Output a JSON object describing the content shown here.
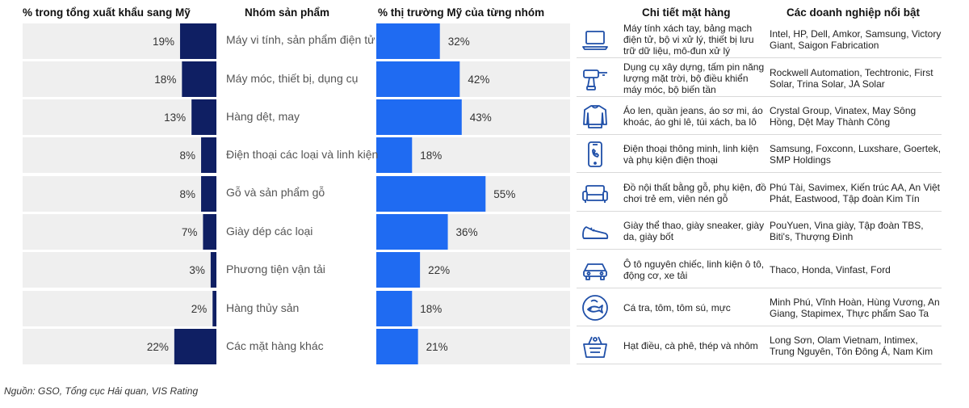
{
  "headers": {
    "left": "% trong tổng xuất khẩu sang Mỹ",
    "product": "Nhóm sản phẩm",
    "right": "% thị trường Mỹ của từng nhóm",
    "detail": "Chi tiết mặt hàng",
    "companies": "Các doanh nghiệp nổi bật"
  },
  "chart_data": [
    {
      "type": "bar",
      "orientation": "horizontal-reversed",
      "title": "% trong tổng xuất khẩu sang Mỹ",
      "categories": [
        "Máy vi tính, sản phẩm điện tử",
        "Máy móc, thiết bị, dụng cụ",
        "Hàng dệt, may",
        "Điện thoại các loại và linh kiện",
        "Gỗ và sản phẩm gỗ",
        "Giày dép các loại",
        "Phương tiện vận tải",
        "Hàng thủy sản",
        "Các mặt hàng khác"
      ],
      "values": [
        19,
        18,
        13,
        8,
        8,
        7,
        3,
        2,
        22
      ],
      "labels": [
        "19%",
        "18%",
        "13%",
        "8%",
        "8%",
        "7%",
        "3%",
        "2%",
        "22%"
      ],
      "xlim": [
        0,
        100
      ],
      "colors": {
        "bar": "#0f1f63",
        "track": "#efefef"
      }
    },
    {
      "type": "bar",
      "orientation": "horizontal",
      "title": "% thị trường Mỹ của từng nhóm",
      "categories": [
        "Máy vi tính, sản phẩm điện tử",
        "Máy móc, thiết bị, dụng cụ",
        "Hàng dệt, may",
        "Điện thoại các loại và linh kiện",
        "Gỗ và sản phẩm gỗ",
        "Giày dép các loại",
        "Phương tiện vận tải",
        "Hàng thủy sản",
        "Các mặt hàng khác"
      ],
      "values": [
        32,
        42,
        43,
        18,
        55,
        36,
        22,
        18,
        21
      ],
      "labels": [
        "32%",
        "42%",
        "43%",
        "18%",
        "55%",
        "36%",
        "22%",
        "18%",
        "21%"
      ],
      "xlim": [
        0,
        100
      ],
      "colors": {
        "bar": "#1f6bf2",
        "track": "#efefef"
      }
    }
  ],
  "rows": [
    {
      "product": "Máy vi tính, sản phẩm điện tử",
      "icon": "laptop-icon",
      "detail": "Máy tính xách tay, bảng mạch điện tử, bộ vi xử lý, thiết bị lưu trữ dữ liệu, mô-đun xử lý",
      "companies": "Intel, HP, Dell, Amkor, Samsung, Victory Giant, Saigon Fabrication"
    },
    {
      "product": "Máy móc, thiết bị, dụng cụ",
      "icon": "drill-icon",
      "detail": "Dụng cụ xây dựng, tấm pin năng lượng mặt trời, bộ điều khiển máy móc, bộ biến tần",
      "companies": "Rockwell Automation, Techtronic, First Solar, Trina Solar, JA Solar"
    },
    {
      "product": "Hàng dệt, may",
      "icon": "sweater-icon",
      "detail": "Áo len, quần jeans, áo sơ mi, áo khoác, áo ghi lê, túi xách, ba lô",
      "companies": "Crystal Group, Vinatex, May Sông Hồng, Dệt May Thành Công"
    },
    {
      "product": "Điện thoại các loại và linh kiện",
      "icon": "smartphone-icon",
      "detail": "Điện thoại thông minh, linh kiện và phụ kiện điện thoại",
      "companies": "Samsung, Foxconn, Luxshare, Goertek, SMP Holdings"
    },
    {
      "product": "Gỗ và sản phẩm gỗ",
      "icon": "sofa-icon",
      "detail": "Đồ nội thất bằng gỗ, phụ kiện, đồ chơi trẻ em, viên nén gỗ",
      "companies": "Phú Tài, Savimex, Kiến trúc AA, An Việt Phát, Eastwood, Tập đoàn Kim Tín"
    },
    {
      "product": "Giày dép các loại",
      "icon": "sneaker-icon",
      "detail": "Giày thể thao, giày sneaker, giày da, giày bốt",
      "companies": "PouYuen, Vina giày, Tập đoàn TBS, Biti's, Thượng Đình"
    },
    {
      "product": "Phương tiện vận tải",
      "icon": "car-icon",
      "detail": "Ô tô nguyên chiếc, linh kiện ô tô, động cơ, xe tải",
      "companies": "Thaco, Honda, Vinfast, Ford"
    },
    {
      "product": "Hàng thủy sản",
      "icon": "seafood-icon",
      "detail": "Cá tra, tôm, tôm sú, mực",
      "companies": "Minh Phú, Vĩnh Hoàn, Hùng Vương, An Giang, Stapimex, Thực phẩm Sao Ta"
    },
    {
      "product": "Các mặt hàng khác",
      "icon": "goods-basket-icon",
      "detail": "Hạt điều, cà phê, thép và nhôm",
      "companies": "Long Sơn, Olam Vietnam, Intimex, Trung Nguyên, Tôn Đông Á, Nam Kim"
    }
  ],
  "source_note": "Nguồn: GSO, Tổng cục Hải quan, VIS Rating",
  "colors": {
    "icon_stroke": "#1f4fa8",
    "divider": "#d9d9d9"
  }
}
